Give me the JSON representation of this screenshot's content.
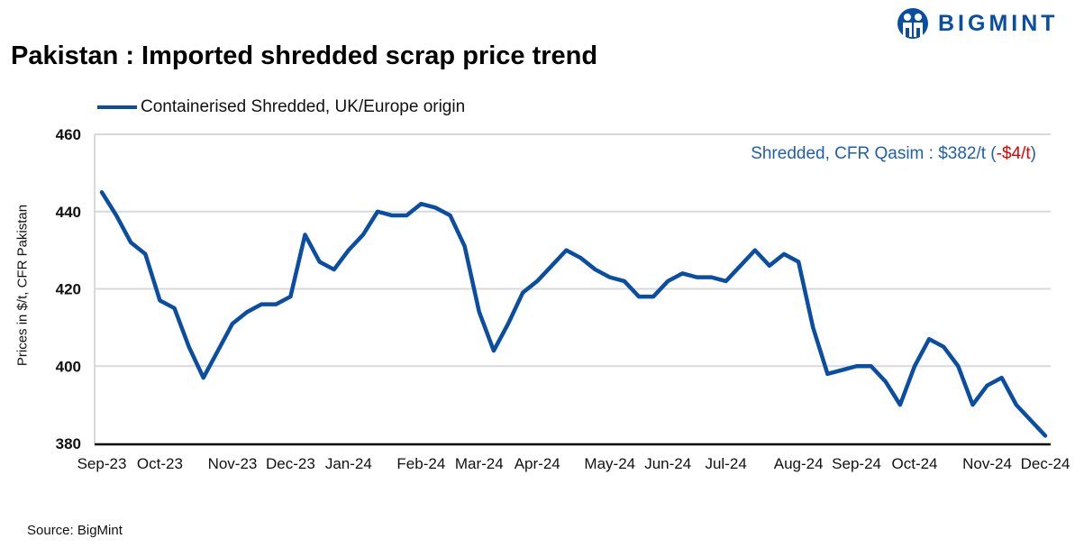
{
  "logo": {
    "text": "BIGMINT"
  },
  "title": "Pakistan : Imported shredded scrap price trend",
  "source": "Source: BigMint",
  "annotation": {
    "prefix": "Shredded, CFR Qasim : $382/t (",
    "change": "-$4/t",
    "suffix": ")",
    "color": "#1f5fb0",
    "change_color": "#e00000"
  },
  "chart_data": {
    "type": "line",
    "title": "Pakistan : Imported shredded scrap price trend",
    "ylabel": "Prices in $/t, CFR Pakistan",
    "xlabel": "",
    "ylim": [
      380,
      460
    ],
    "yticks": [
      380,
      400,
      420,
      440,
      460
    ],
    "grid": true,
    "legend": "top-left",
    "x_tick_labels": [
      {
        "label": "Sep-23",
        "index": 0
      },
      {
        "label": "Oct-23",
        "index": 4
      },
      {
        "label": "Nov-23",
        "index": 9
      },
      {
        "label": "Dec-23",
        "index": 13
      },
      {
        "label": "Jan-24",
        "index": 17
      },
      {
        "label": "Feb-24",
        "index": 22
      },
      {
        "label": "Mar-24",
        "index": 26
      },
      {
        "label": "Apr-24",
        "index": 30
      },
      {
        "label": "May-24",
        "index": 35
      },
      {
        "label": "Jun-24",
        "index": 39
      },
      {
        "label": "Jul-24",
        "index": 43
      },
      {
        "label": "Aug-24",
        "index": 48
      },
      {
        "label": "Sep-24",
        "index": 52
      },
      {
        "label": "Oct-24",
        "index": 56
      },
      {
        "label": "Nov-24",
        "index": 61
      },
      {
        "label": "Dec-24",
        "index": 65
      }
    ],
    "series": [
      {
        "name": "Containerised Shredded, UK/Europe origin",
        "color": "#0a4ea3",
        "values": [
          445,
          439,
          432,
          429,
          417,
          415,
          405,
          397,
          404,
          411,
          414,
          416,
          416,
          418,
          434,
          427,
          425,
          430,
          434,
          440,
          439,
          439,
          442,
          441,
          439,
          431,
          414,
          404,
          411,
          419,
          422,
          426,
          430,
          428,
          425,
          423,
          422,
          418,
          418,
          422,
          424,
          423,
          423,
          422,
          426,
          430,
          426,
          429,
          427,
          410,
          398,
          399,
          400,
          400,
          396,
          390,
          400,
          407,
          405,
          400,
          390,
          395,
          397,
          390,
          386,
          382
        ]
      }
    ]
  }
}
